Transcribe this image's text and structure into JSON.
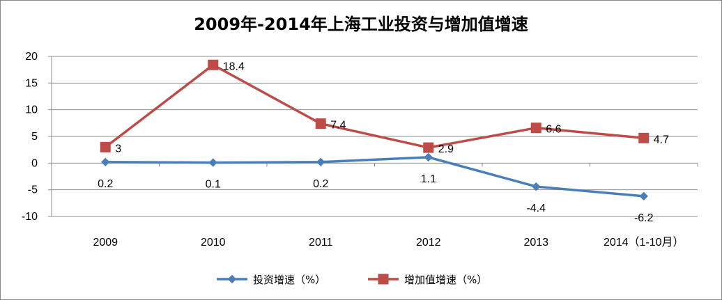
{
  "chart_data": {
    "type": "line",
    "title": "2009年-2014年上海工业投资与增加值增速",
    "categories": [
      "2009",
      "2010",
      "2011",
      "2012",
      "2013",
      "2014（1-10月）"
    ],
    "series": [
      {
        "name": "投资增速（%）",
        "values": [
          0.2,
          0.1,
          0.2,
          1.1,
          -4.4,
          -6.2
        ],
        "labels": [
          "0.2",
          "0.1",
          "0.2",
          "1.1",
          "-4.4",
          "-6.2"
        ],
        "color": "#4a7ebb",
        "marker": "diamond"
      },
      {
        "name": "增加值增速（%）",
        "values": [
          3,
          18.4,
          7.4,
          2.9,
          6.6,
          4.7
        ],
        "labels": [
          "3",
          "18.4",
          "7.4",
          "2.9",
          "6.6",
          "4.7"
        ],
        "color": "#be4b48",
        "marker": "square"
      }
    ],
    "ylim": [
      -10,
      20
    ],
    "yticks": [
      20,
      15,
      10,
      5,
      0,
      -5,
      -10
    ],
    "xlabel": "",
    "ylabel": "",
    "grid": true,
    "legend": "bottom"
  }
}
